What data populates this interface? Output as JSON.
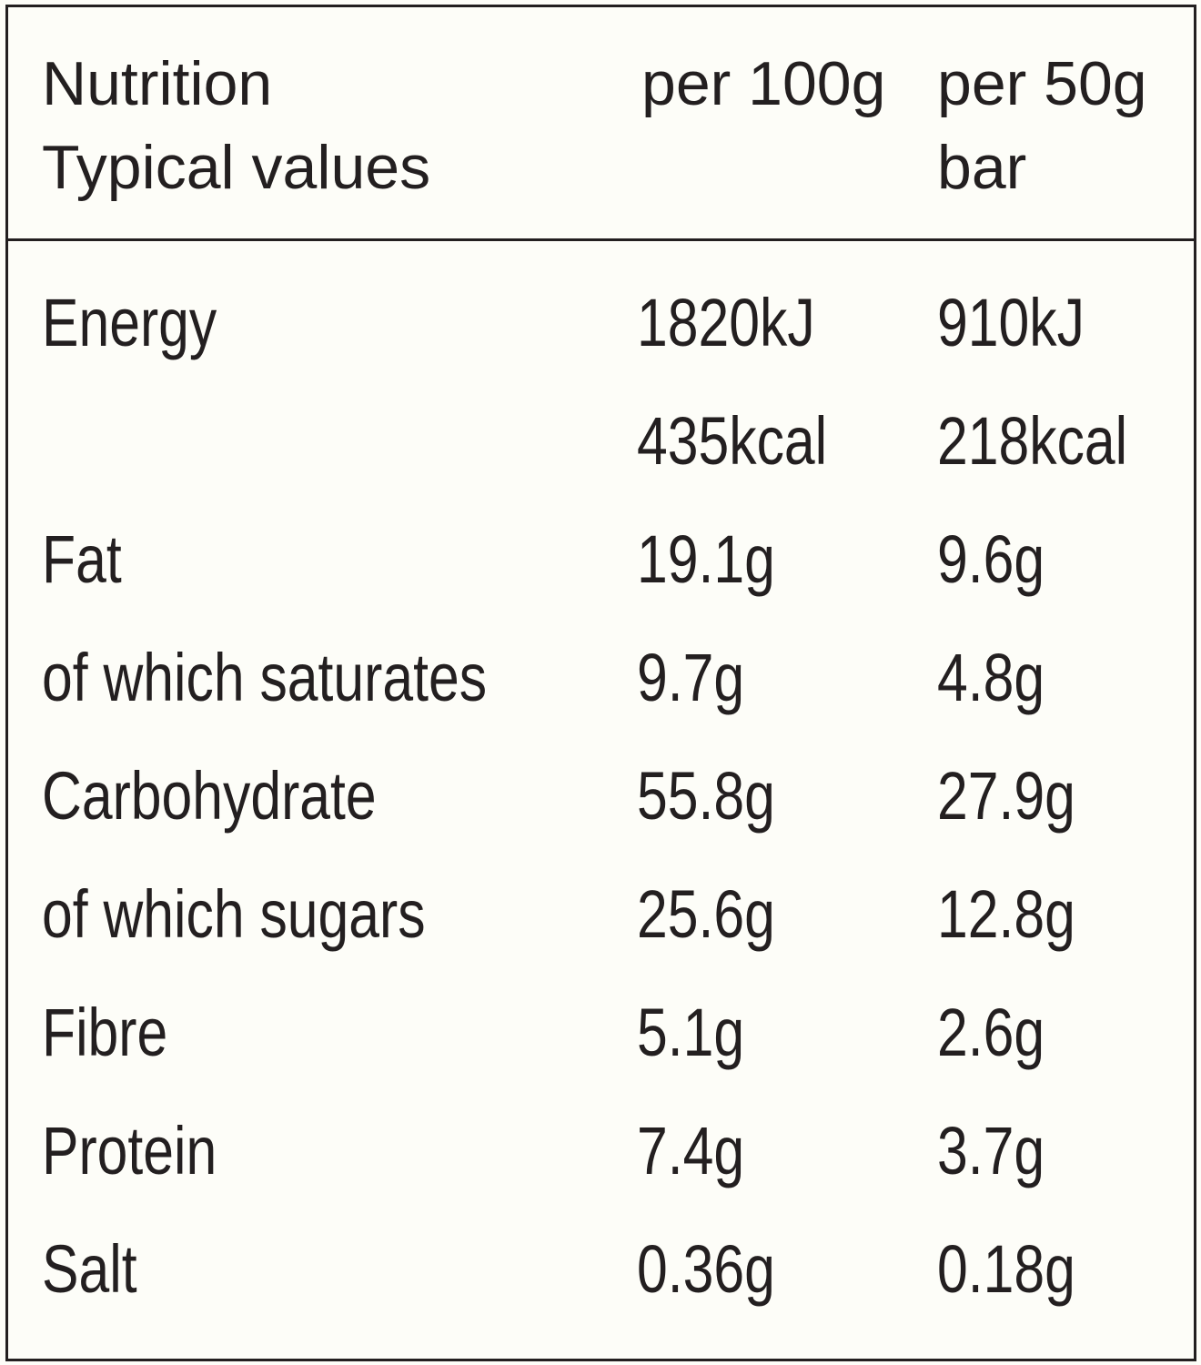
{
  "table": {
    "header": {
      "label": [
        "Nutrition",
        "Typical values"
      ],
      "per100": [
        "per 100g"
      ],
      "per50": [
        "per 50g",
        "bar"
      ]
    },
    "rows": [
      [
        "Energy",
        [
          "1820kJ",
          "435kcal"
        ],
        [
          "910kJ",
          "218kcal"
        ]
      ],
      [
        "Fat",
        [
          "19.1g"
        ],
        [
          "9.6g"
        ]
      ],
      [
        "of which saturates",
        [
          "9.7g"
        ],
        [
          "4.8g"
        ]
      ],
      [
        "Carbohydrate",
        [
          "55.8g"
        ],
        [
          "27.9g"
        ]
      ],
      [
        "of which sugars",
        [
          "25.6g"
        ],
        [
          "12.8g"
        ]
      ],
      [
        "Fibre",
        [
          "5.1g"
        ],
        [
          "2.6g"
        ]
      ],
      [
        "Protein",
        [
          "7.4g"
        ],
        [
          "3.7g"
        ]
      ],
      [
        "Salt",
        [
          "0.36g"
        ],
        [
          "0.18g"
        ]
      ]
    ]
  }
}
